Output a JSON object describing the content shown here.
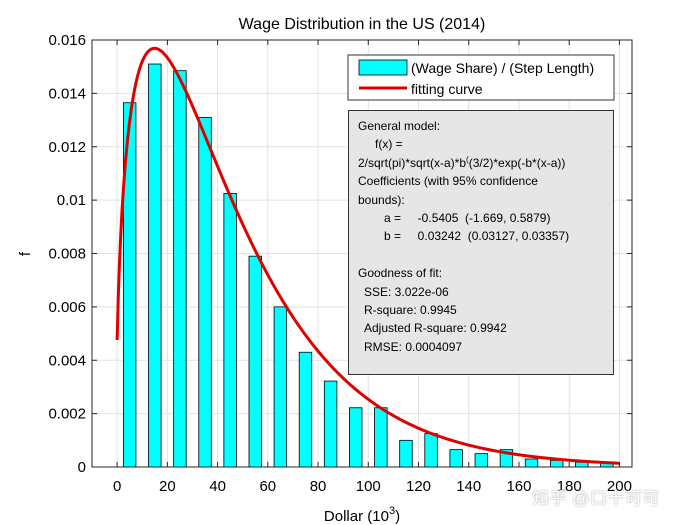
{
  "chart_data": {
    "type": "bar",
    "title": "Wage Distribution in the US (2014)",
    "xlabel": "Dollar (10",
    "xlabel_sup": "3",
    "xlabel_close": ")",
    "ylabel": "f",
    "xlim": [
      -10,
      205
    ],
    "ylim": [
      0,
      0.016
    ],
    "xticks": [
      0,
      20,
      40,
      60,
      80,
      100,
      120,
      140,
      160,
      180,
      200
    ],
    "yticks": [
      0,
      0.002,
      0.004,
      0.006,
      0.008,
      0.01,
      0.012,
      0.014,
      0.016
    ],
    "ytick_labels": [
      "0",
      "0.002",
      "0.004",
      "0.006",
      "0.008",
      "0.01",
      "0.012",
      "0.014",
      "0.016"
    ],
    "bar_width": 5,
    "grid": true,
    "series": [
      {
        "name": "(Wage Share) / (Step Length)",
        "kind": "bar",
        "color": "#00ffff",
        "x": [
          5,
          15,
          25,
          35,
          45,
          55,
          65,
          75,
          85,
          95,
          105,
          115,
          125,
          135,
          145,
          155,
          165,
          175,
          185,
          195
        ],
        "values": [
          0.01365,
          0.0151,
          0.01485,
          0.0131,
          0.01025,
          0.0079,
          0.006,
          0.0043,
          0.00322,
          0.00222,
          0.00222,
          0.001,
          0.00125,
          0.00065,
          0.0005,
          0.00065,
          0.0003,
          0.00025,
          0.00018,
          0.00015
        ]
      },
      {
        "name": "fitting curve",
        "kind": "line",
        "color": "#e00000",
        "model": {
          "a": -0.5405,
          "b": 0.03242
        }
      }
    ],
    "legend_position": "top-right",
    "fit_box": {
      "lines": [
        "General model:",
        "f(x) =",
        "2/sqrt(pi)*sqrt(x-a)*b",
        "(3/2)*exp(-b*(x-a))",
        "Coefficients (with 95% confidence",
        "bounds):",
        "a =     -0.5405  (-1.669, 0.5879)",
        "b =     0.03242  (0.03127, 0.03357)",
        "Goodness of fit:",
        "SSE: 3.022e-06",
        "R-square: 0.9945",
        "Adjusted R-square: 0.9942",
        "RMSE: 0.0004097"
      ]
    }
  },
  "watermark": "知乎 @口十可可",
  "colors": {
    "bar_fill": "#00ffff",
    "curve": "#e00000",
    "fit_box_bg": "#e6e6e6",
    "grid": "#e2e2e2"
  }
}
